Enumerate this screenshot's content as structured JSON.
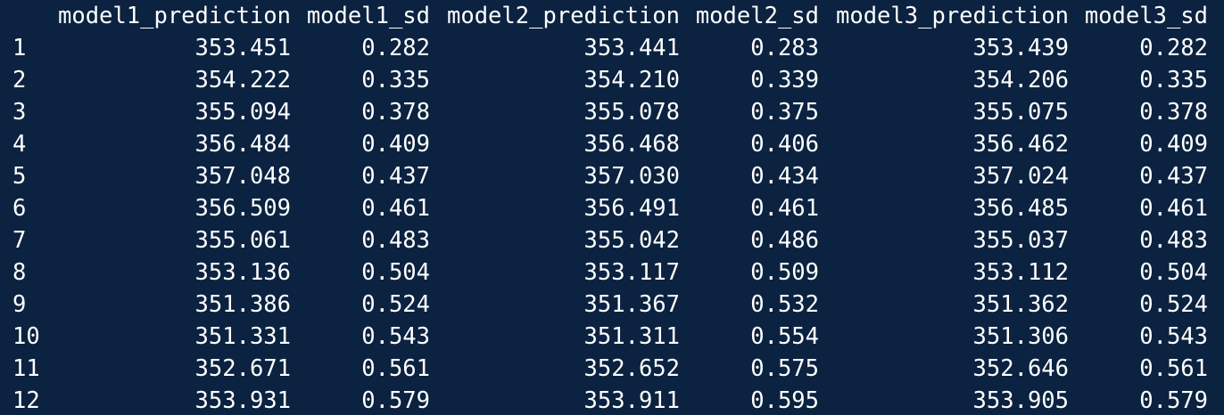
{
  "console": {
    "headers": [
      "",
      "model1_prediction",
      "model1_sd",
      "model2_prediction",
      "model2_sd",
      "model3_prediction",
      "model3_sd"
    ],
    "rows": [
      [
        "1",
        "353.451",
        "0.282",
        "353.441",
        "0.283",
        "353.439",
        "0.282"
      ],
      [
        "2",
        "354.222",
        "0.335",
        "354.210",
        "0.339",
        "354.206",
        "0.335"
      ],
      [
        "3",
        "355.094",
        "0.378",
        "355.078",
        "0.375",
        "355.075",
        "0.378"
      ],
      [
        "4",
        "356.484",
        "0.409",
        "356.468",
        "0.406",
        "356.462",
        "0.409"
      ],
      [
        "5",
        "357.048",
        "0.437",
        "357.030",
        "0.434",
        "357.024",
        "0.437"
      ],
      [
        "6",
        "356.509",
        "0.461",
        "356.491",
        "0.461",
        "356.485",
        "0.461"
      ],
      [
        "7",
        "355.061",
        "0.483",
        "355.042",
        "0.486",
        "355.037",
        "0.483"
      ],
      [
        "8",
        "353.136",
        "0.504",
        "353.117",
        "0.509",
        "353.112",
        "0.504"
      ],
      [
        "9",
        "351.386",
        "0.524",
        "351.367",
        "0.532",
        "351.362",
        "0.524"
      ],
      [
        "10",
        "351.331",
        "0.543",
        "351.311",
        "0.554",
        "351.306",
        "0.543"
      ],
      [
        "11",
        "352.671",
        "0.561",
        "352.652",
        "0.575",
        "352.646",
        "0.561"
      ],
      [
        "12",
        "353.931",
        "0.579",
        "353.911",
        "0.595",
        "353.905",
        "0.579"
      ]
    ],
    "colors": {
      "background": "#0b2240",
      "text": "#ffffff"
    }
  }
}
